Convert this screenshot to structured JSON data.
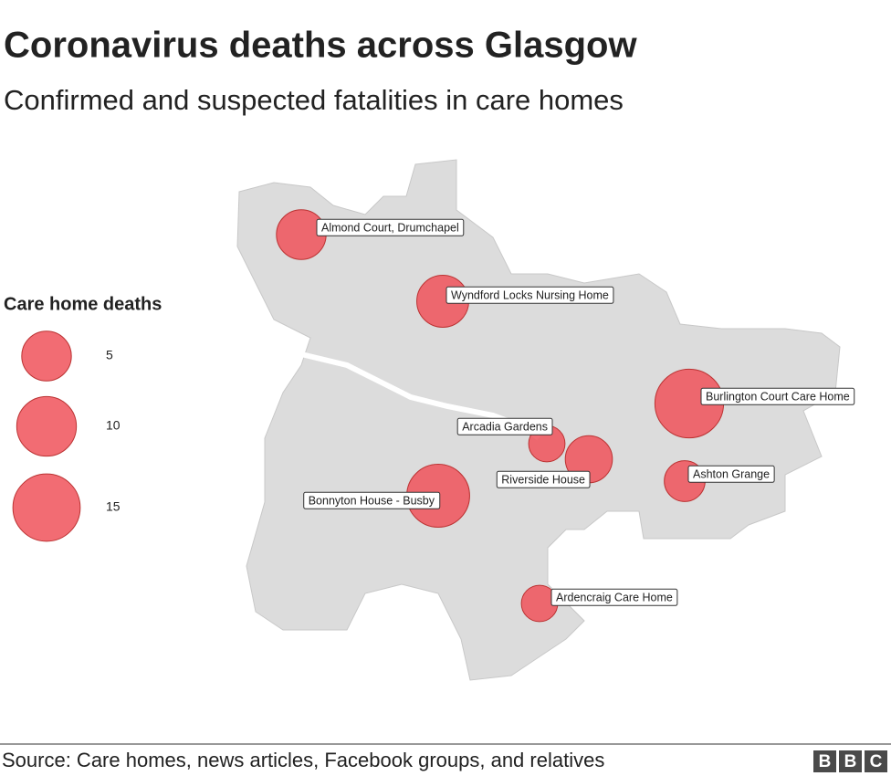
{
  "title": "Coronavirus deaths across Glasgow",
  "subtitle": "Confirmed and suspected fatalities in care homes",
  "legend": {
    "title": "Care home deaths",
    "sizes": [
      5,
      10,
      15
    ]
  },
  "homes": [
    {
      "name": "Almond Court, Drumchapel",
      "deaths": 5
    },
    {
      "name": "Wyndford Locks Nursing Home",
      "deaths": 6
    },
    {
      "name": "Burlington Court Care Home",
      "deaths": 16
    },
    {
      "name": "Arcadia Gardens",
      "deaths": 1
    },
    {
      "name": "Riverside House",
      "deaths": 4
    },
    {
      "name": "Ashton Grange",
      "deaths": 2
    },
    {
      "name": "Bonnyton House - Busby",
      "deaths": 12
    },
    {
      "name": "Ardencraig Care Home",
      "deaths": 1
    }
  ],
  "source": "Source: Care homes, news articles, Facebook groups, and relatives",
  "logo": [
    "B",
    "B",
    "C"
  ]
}
